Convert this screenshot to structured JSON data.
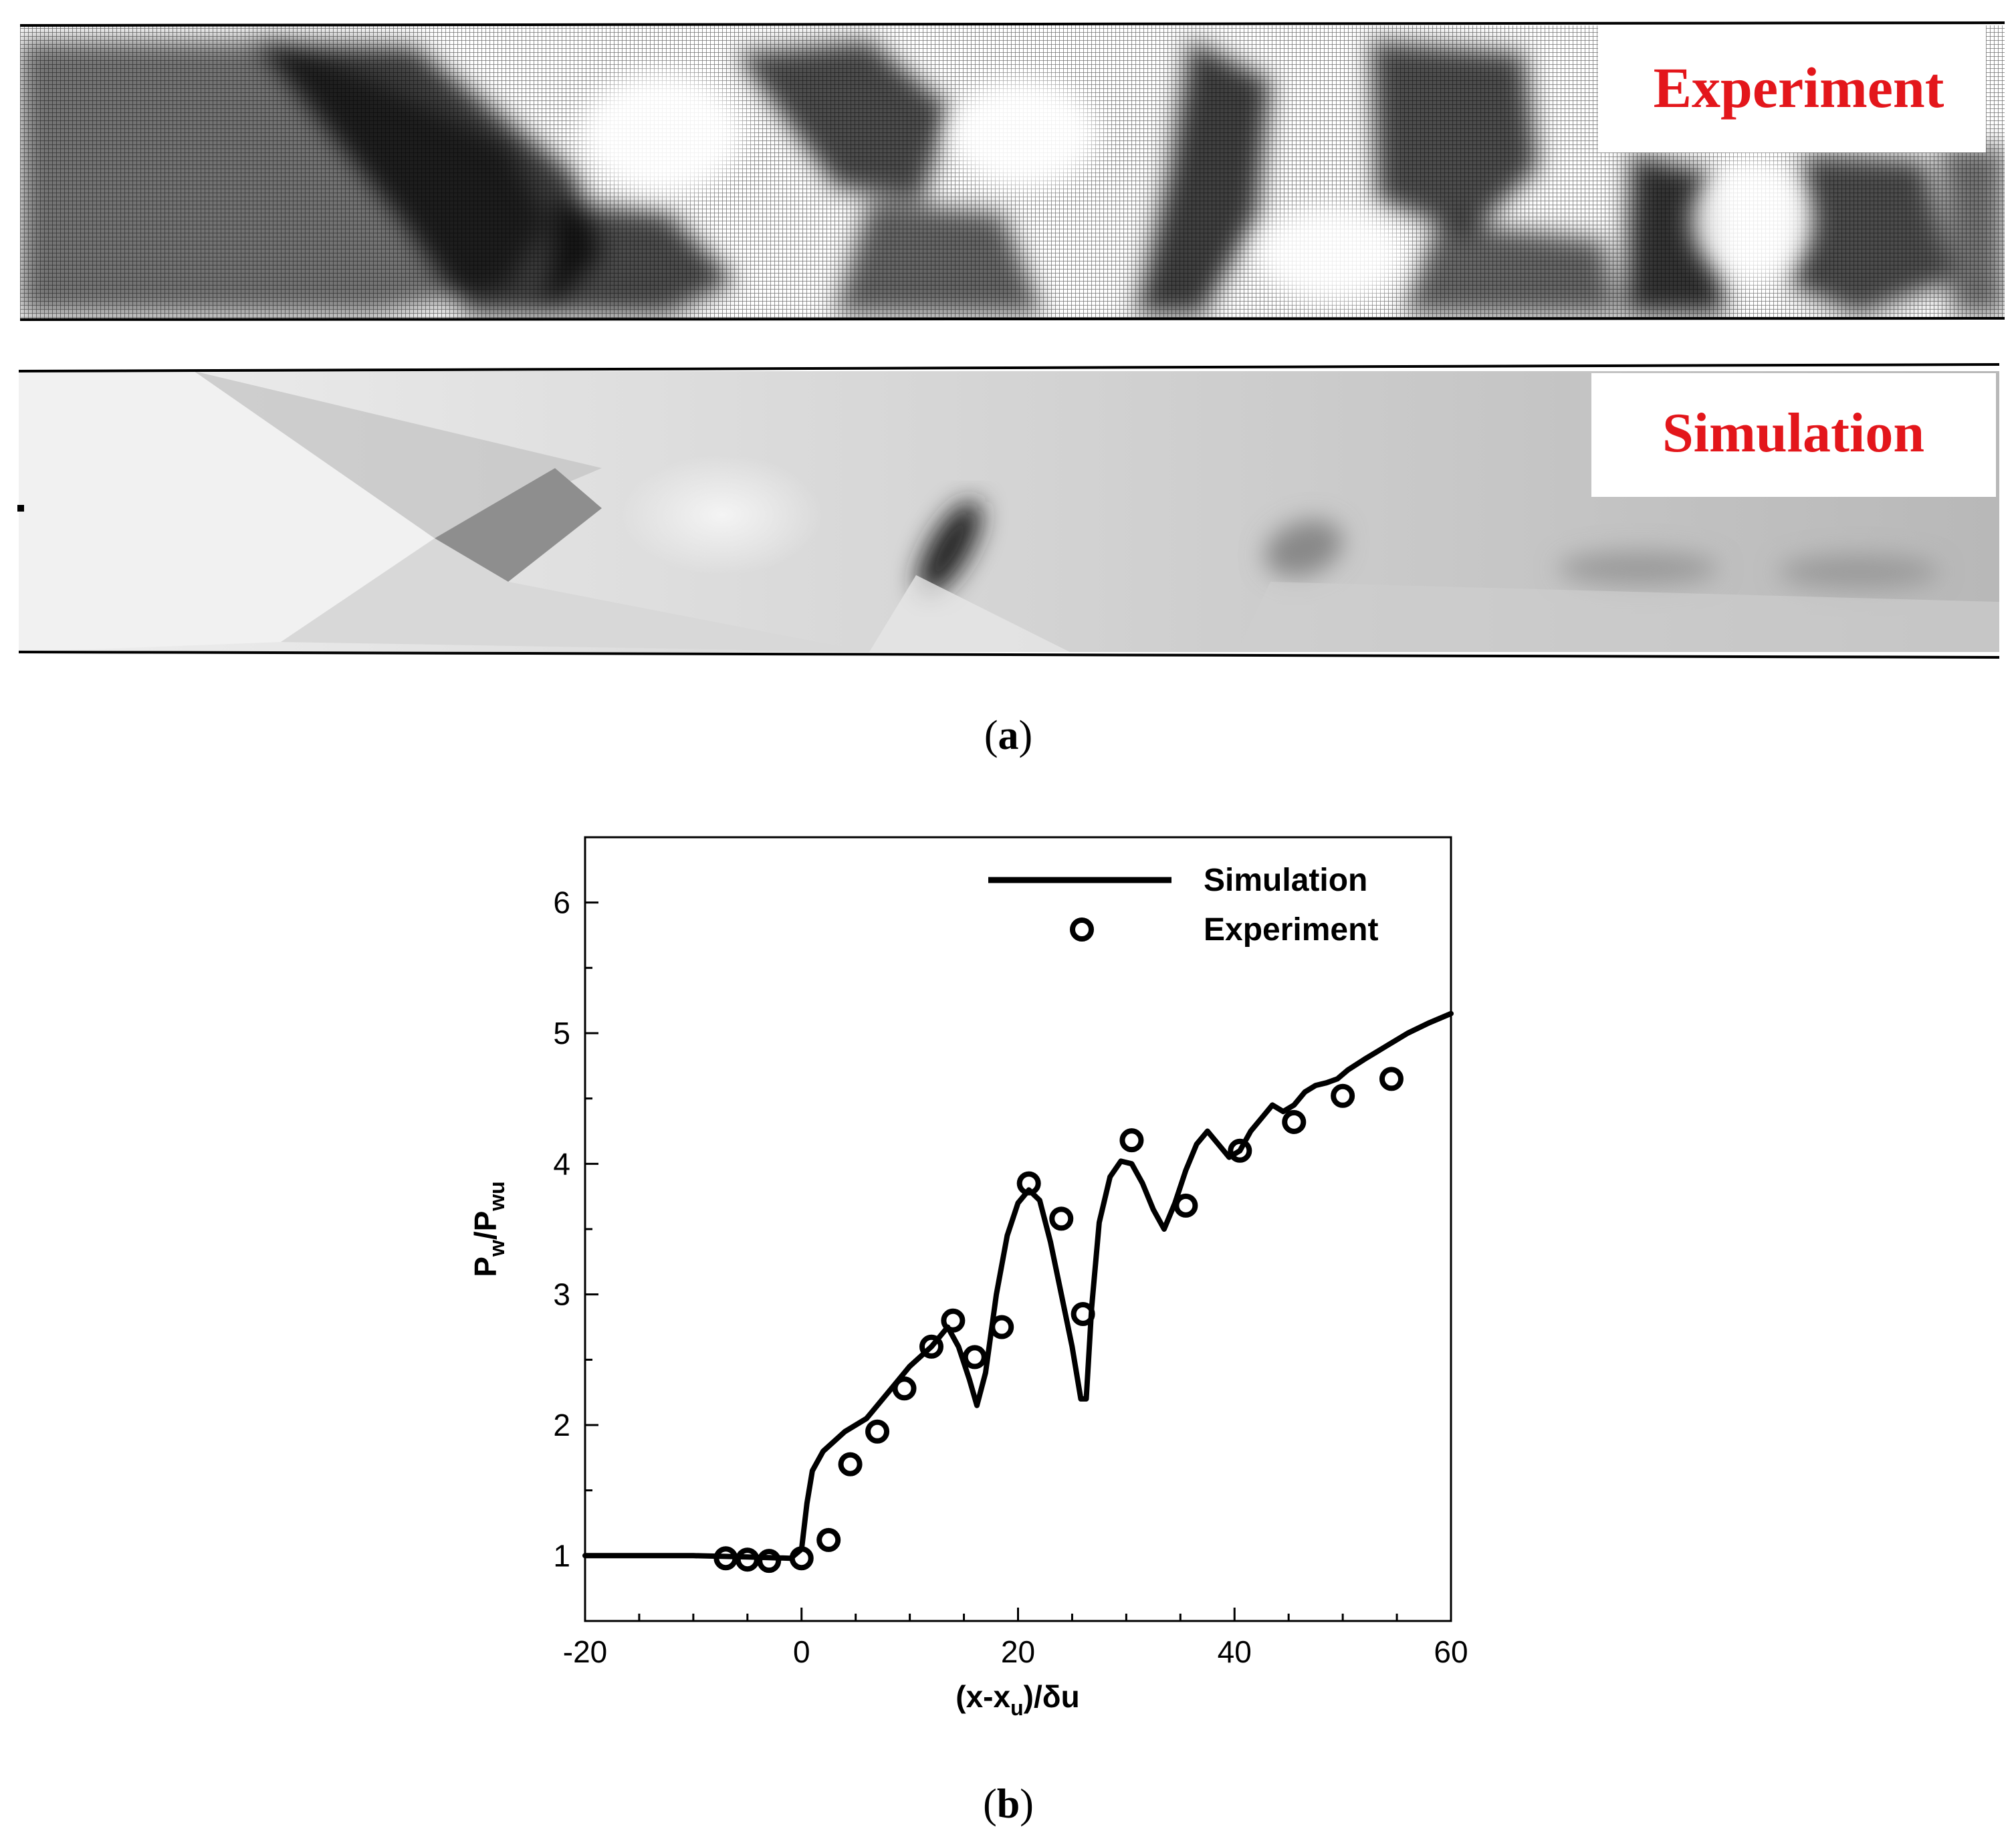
{
  "panel_a": {
    "experiment_label": "Experiment",
    "simulation_label": "Simulation",
    "caption_letter": "a",
    "label_color": "#e3161b"
  },
  "panel_b": {
    "caption_letter": "b"
  },
  "chart_data": {
    "type": "line",
    "xlabel_main": "(x-x",
    "xlabel_sub": "u",
    "xlabel_tail": ")/δu",
    "ylabel_main": "P",
    "ylabel_sub1": "w",
    "ylabel_mid": "/P",
    "ylabel_sub2": "wu",
    "xlim": [
      -20,
      60
    ],
    "ylim": [
      0.5,
      6.5
    ],
    "xticks": [
      -20,
      0,
      20,
      40,
      60
    ],
    "yticks": [
      1,
      2,
      3,
      4,
      5,
      6
    ],
    "legend_position": "top-right",
    "series": [
      {
        "name": "Simulation",
        "kind": "line",
        "x": [
          -20,
          -10,
          -5,
          -1,
          0,
          0.5,
          1,
          2,
          4,
          6,
          8,
          10,
          12,
          13.5,
          14.5,
          15.5,
          16.2,
          17,
          18,
          19,
          20,
          21,
          22,
          23,
          24,
          25,
          25.8,
          26.3,
          26.8,
          27.5,
          28.5,
          29.5,
          30.5,
          31.5,
          32.5,
          33.5,
          34.5,
          35.5,
          36.5,
          37.5,
          38.5,
          39.5,
          40.5,
          41.5,
          42.5,
          43.5,
          44.5,
          45.5,
          46.5,
          47.5,
          48.5,
          49.5,
          50.5,
          52,
          54,
          56,
          58,
          60
        ],
        "y": [
          1.0,
          1.0,
          0.99,
          0.98,
          1.05,
          1.4,
          1.65,
          1.8,
          1.95,
          2.05,
          2.25,
          2.45,
          2.6,
          2.75,
          2.6,
          2.35,
          2.15,
          2.4,
          3.0,
          3.45,
          3.7,
          3.8,
          3.72,
          3.4,
          3.0,
          2.6,
          2.2,
          2.2,
          2.9,
          3.55,
          3.9,
          4.02,
          4.0,
          3.85,
          3.65,
          3.5,
          3.7,
          3.95,
          4.15,
          4.25,
          4.15,
          4.05,
          4.1,
          4.25,
          4.35,
          4.45,
          4.4,
          4.45,
          4.55,
          4.6,
          4.62,
          4.65,
          4.72,
          4.8,
          4.9,
          5.0,
          5.08,
          5.15
        ]
      },
      {
        "name": "Experiment",
        "kind": "scatter",
        "x": [
          -7,
          -5,
          -3,
          0,
          2.5,
          4.5,
          7,
          9.5,
          12,
          14,
          16,
          18.5,
          21,
          24,
          26,
          30.5,
          35.5,
          40.5,
          45.5,
          50,
          54.5
        ],
        "y": [
          0.98,
          0.97,
          0.96,
          0.98,
          1.12,
          1.7,
          1.95,
          2.28,
          2.6,
          2.8,
          2.52,
          2.75,
          3.85,
          3.58,
          2.85,
          4.18,
          3.68,
          4.1,
          4.32,
          4.52,
          4.65
        ]
      }
    ]
  }
}
